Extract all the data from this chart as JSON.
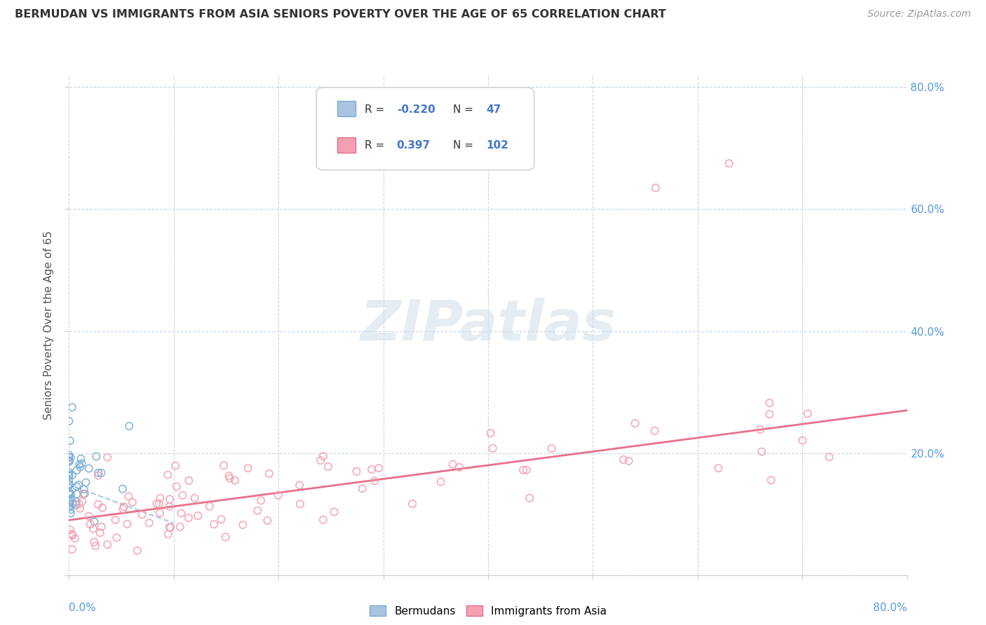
{
  "title": "BERMUDAN VS IMMIGRANTS FROM ASIA SENIORS POVERTY OVER THE AGE OF 65 CORRELATION CHART",
  "source": "Source: ZipAtlas.com",
  "ylabel": "Seniors Poverty Over the Age of 65",
  "xlim": [
    0,
    0.8
  ],
  "ylim": [
    0,
    0.82
  ],
  "background_color": "#ffffff",
  "grid_color": "#c8d8e8",
  "bermuda_scatter_color": "#7bafd4",
  "asia_scatter_color": "#f4a0b0",
  "trend_bermuda_color": "#aac8ee",
  "trend_asia_color": "#e8708a",
  "watermark_color": "#d0dde8",
  "title_color": "#333333",
  "source_color": "#999999",
  "ylabel_color": "#555555",
  "tick_color": "#5599dd",
  "legend_box_color": "#a8c4e0",
  "legend_box_color2": "#f4a0b0",
  "right_yticks": [
    0.0,
    0.2,
    0.4,
    0.6,
    0.8
  ],
  "right_ytick_labels": [
    "",
    "20.0%",
    "40.0%",
    "60.0%",
    "80.0%"
  ]
}
